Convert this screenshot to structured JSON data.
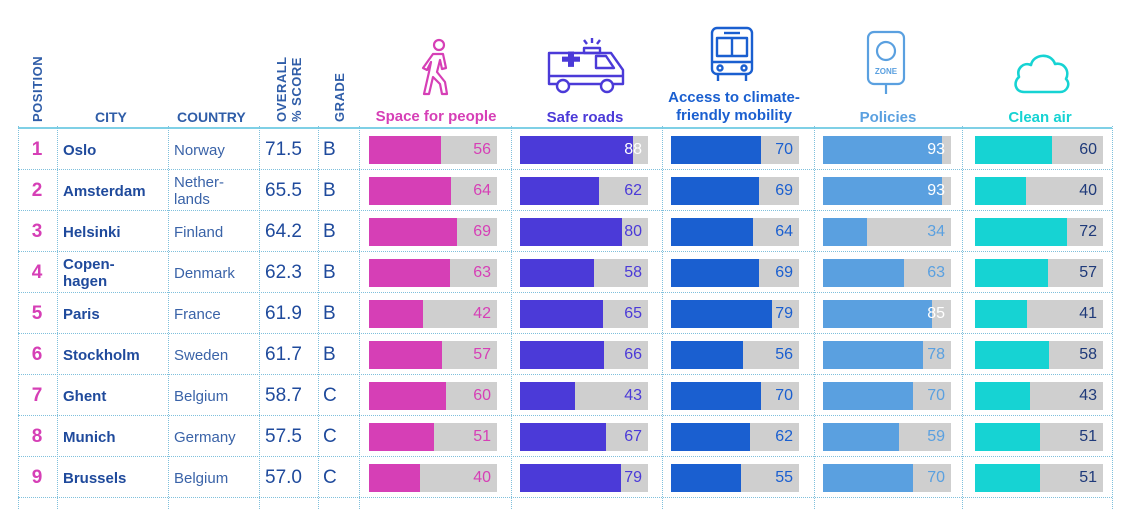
{
  "headers": {
    "position": "POSITION",
    "city": "CITY",
    "country": "COUNTRY",
    "score_line1": "OVERALL",
    "score_line2": "% SCORE",
    "grade": "GRADE"
  },
  "categories": [
    {
      "key": "space",
      "label": "Space for people",
      "color": "#d63fb6",
      "value_color": "#d63fb6",
      "icon": "pedestrian-icon"
    },
    {
      "key": "roads",
      "label": "Safe roads",
      "color": "#4b3ad8",
      "value_color": "#4b3ad8",
      "icon": "ambulance-icon"
    },
    {
      "key": "mobility",
      "label": "Access to climate-friendly mobility",
      "label_line1": "Access to climate-",
      "label_line2": "friendly mobility",
      "color": "#1a5fd0",
      "value_color": "#1a5fd0",
      "icon": "bus-icon"
    },
    {
      "key": "policies",
      "label": "Policies",
      "color": "#5aa0e0",
      "value_color": "#5aa0e0",
      "icon": "zone-sign-icon",
      "icon_text": "ZONE"
    },
    {
      "key": "air",
      "label": "Clean air",
      "color": "#16d3d3",
      "value_color": "#1f3a7a",
      "icon": "cloud-icon"
    }
  ],
  "chart_data": {
    "type": "table",
    "columns": [
      "POSITION",
      "CITY",
      "COUNTRY",
      "OVERALL % SCORE",
      "GRADE",
      "Space for people",
      "Safe roads",
      "Access to climate-friendly mobility",
      "Policies",
      "Clean air"
    ],
    "rows": [
      {
        "position": "1",
        "city": "Oslo",
        "country": "Norway",
        "score": "71.5",
        "grade": "B",
        "values": [
          56,
          88,
          70,
          93,
          60
        ]
      },
      {
        "position": "2",
        "city": "Amsterdam",
        "country": "Nether-lands",
        "country_line1": "Nether-",
        "country_line2": "lands",
        "score": "65.5",
        "grade": "B",
        "values": [
          64,
          62,
          69,
          93,
          40
        ]
      },
      {
        "position": "3",
        "city": "Helsinki",
        "country": "Finland",
        "score": "64.2",
        "grade": "B",
        "values": [
          69,
          80,
          64,
          34,
          72
        ]
      },
      {
        "position": "4",
        "city": "Copen-hagen",
        "city_line1": "Copen-",
        "city_line2": "hagen",
        "country": "Denmark",
        "score": "62.3",
        "grade": "B",
        "values": [
          63,
          58,
          69,
          63,
          57
        ]
      },
      {
        "position": "5",
        "city": "Paris",
        "country": "France",
        "score": "61.9",
        "grade": "B",
        "values": [
          42,
          65,
          79,
          85,
          41
        ]
      },
      {
        "position": "6",
        "city": "Stockholm",
        "country": "Sweden",
        "score": "61.7",
        "grade": "B",
        "values": [
          57,
          66,
          56,
          78,
          58
        ]
      },
      {
        "position": "7",
        "city": "Ghent",
        "country": "Belgium",
        "score": "58.7",
        "grade": "C",
        "values": [
          60,
          43,
          70,
          70,
          43
        ]
      },
      {
        "position": "8",
        "city": "Munich",
        "country": "Germany",
        "score": "57.5",
        "grade": "C",
        "values": [
          51,
          67,
          62,
          59,
          51
        ]
      },
      {
        "position": "9",
        "city": "Brussels",
        "country": "Belgium",
        "score": "57.0",
        "grade": "C",
        "values": [
          40,
          79,
          55,
          70,
          51
        ]
      }
    ],
    "value_range": [
      0,
      100
    ]
  }
}
